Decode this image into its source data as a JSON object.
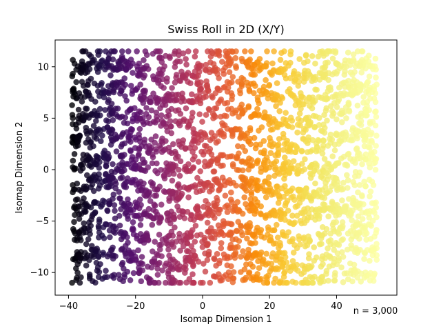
{
  "chart_data": {
    "type": "scatter",
    "title": "Swiss Roll in 2D (X/Y)",
    "xlabel": "Isomap Dimension 1",
    "ylabel": "Isomap Dimension 2",
    "xlim": [
      -44,
      58
    ],
    "ylim": [
      -12.2,
      12.6
    ],
    "xticks": [
      -40,
      -20,
      0,
      20,
      40
    ],
    "yticks": [
      -10,
      -5,
      0,
      5,
      10
    ],
    "xtick_labels": [
      "−40",
      "−20",
      "0",
      "20",
      "40"
    ],
    "ytick_labels": [
      "−10",
      "−5",
      "0",
      "5",
      "10"
    ],
    "annotation": "n = 3,000",
    "n_points": 3000,
    "colormap": "inferno",
    "color_by": "x",
    "point_alpha": 0.8,
    "x_range_of_points": [
      -39,
      52
    ],
    "y_range_of_points": [
      -11,
      11.5
    ],
    "grid": false,
    "legend": "none"
  }
}
